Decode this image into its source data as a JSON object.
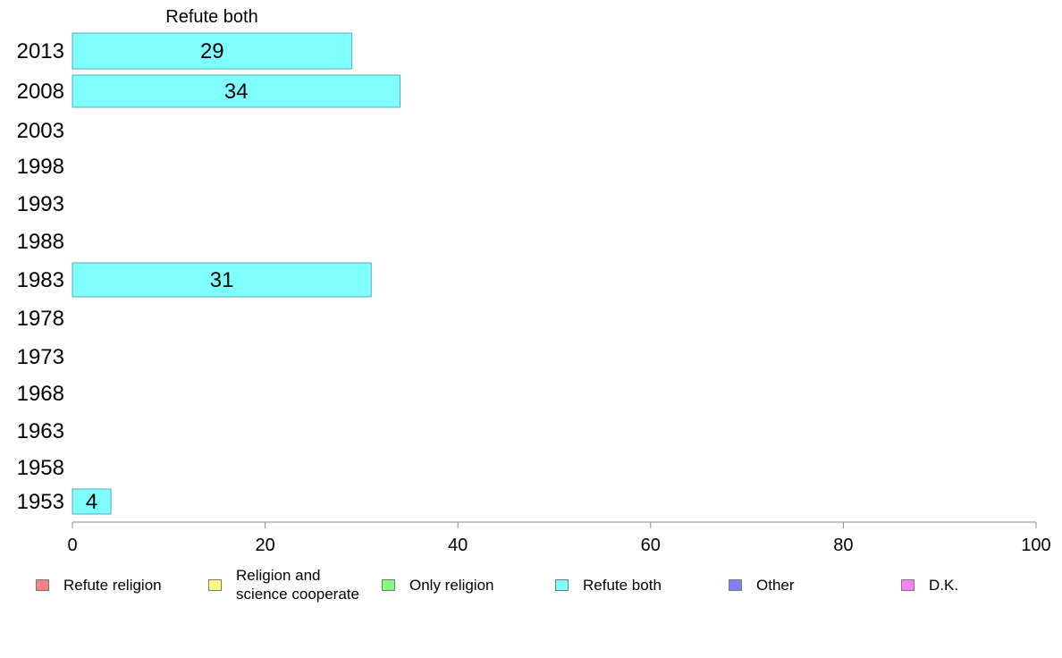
{
  "chart_data": {
    "type": "bar",
    "orientation": "horizontal",
    "title": "Refute both",
    "categories": [
      "2013",
      "2008",
      "2003",
      "1998",
      "1993",
      "1988",
      "1983",
      "1978",
      "1973",
      "1968",
      "1963",
      "1958",
      "1953"
    ],
    "series": [
      {
        "name": "Refute both",
        "values": [
          29,
          34,
          null,
          null,
          null,
          null,
          31,
          null,
          null,
          null,
          null,
          null,
          4
        ]
      }
    ],
    "data_labels": [
      "29",
      "34",
      "",
      "",
      "",
      "",
      "31",
      "",
      "",
      "",
      "",
      "",
      "4"
    ],
    "xlim": [
      0,
      100
    ],
    "xticks": [
      "0",
      "20",
      "40",
      "60",
      "80",
      "100"
    ],
    "xlabel": "",
    "ylabel": "",
    "grid": false,
    "legend_position": "bottom",
    "legend": [
      {
        "label": "Refute religion",
        "color": "#ff8080"
      },
      {
        "label": "Religion and\nscience cooperate",
        "color": "#ffff80"
      },
      {
        "label": "Only religion",
        "color": "#80ff80"
      },
      {
        "label": "Refute both",
        "color": "#80ffff"
      },
      {
        "label": "Other",
        "color": "#8080ff"
      },
      {
        "label": "D.K.",
        "color": "#ff80ff"
      }
    ],
    "bar_color": "#80ffff"
  }
}
